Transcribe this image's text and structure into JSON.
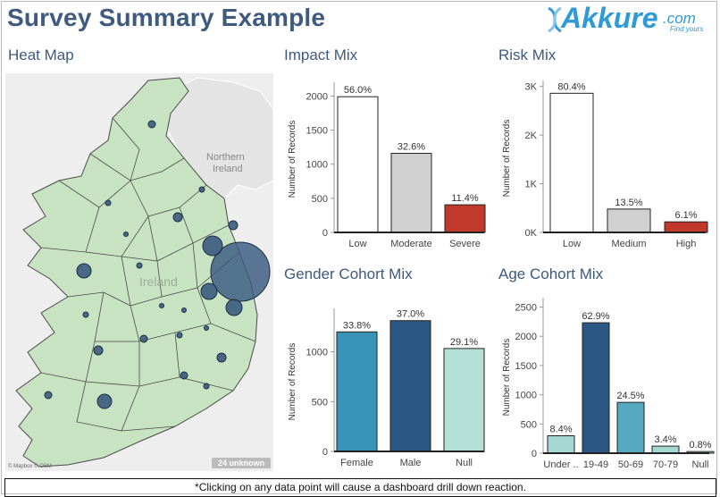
{
  "page": {
    "title": "Survey Summary Example"
  },
  "logo": {
    "main": "Akkure",
    "suffix": ".com",
    "tagline": "Find yours"
  },
  "sections": {
    "heat_map": "Heat Map",
    "impact": "Impact Mix",
    "risk": "Risk Mix",
    "gender": "Gender Cohort Mix",
    "age": "Age Cohort Mix"
  },
  "map": {
    "region_label": "Ireland",
    "northern_label_line1": "Northern",
    "northern_label_line2": "Ireland",
    "unknown_badge": "24 unknown",
    "credit": "© Mapbox © OSM",
    "colors": {
      "land": "#c8e3c2",
      "water": "#eeeeee",
      "ni": "#e4e4e4",
      "marker": "#3b5a80"
    }
  },
  "footer": {
    "note": "*Clicking on any data point will cause a dashboard drill down reaction."
  },
  "chart_data": [
    {
      "id": "impact",
      "type": "bar",
      "categories": [
        "Low",
        "Moderate",
        "Severe"
      ],
      "values": [
        1990,
        1160,
        405
      ],
      "labels": [
        "56.0%",
        "32.6%",
        "11.4%"
      ],
      "colors": [
        "#ffffff",
        "#d0d0d0",
        "#c0392b"
      ],
      "ylabel": "Number of Records",
      "ylim": [
        0,
        2150
      ],
      "ticks": [
        0,
        500,
        1000,
        1500,
        2000
      ],
      "tick_labels": [
        "0",
        "500",
        "1000",
        "1500",
        "2000"
      ]
    },
    {
      "id": "risk",
      "type": "bar",
      "categories": [
        "Low",
        "Medium",
        "High"
      ],
      "values": [
        2860,
        480,
        217
      ],
      "labels": [
        "80.4%",
        "13.5%",
        "6.1%"
      ],
      "colors": [
        "#ffffff",
        "#d0d0d0",
        "#c0392b"
      ],
      "ylabel": "Number of Records",
      "ylim": [
        0,
        3050
      ],
      "ticks": [
        0,
        1000,
        2000,
        3000
      ],
      "tick_labels": [
        "0K",
        "1K",
        "2K",
        "3K"
      ]
    },
    {
      "id": "gender",
      "type": "bar",
      "categories": [
        "Female",
        "Male",
        "Null"
      ],
      "values": [
        1200,
        1313,
        1033
      ],
      "labels": [
        "33.8%",
        "37.0%",
        "29.1%"
      ],
      "colors": [
        "#3a93b8",
        "#2b5784",
        "#b4e0d8"
      ],
      "ylabel": "Number of Records",
      "ylim": [
        0,
        1400
      ],
      "ticks": [
        0,
        500,
        1000
      ],
      "tick_labels": [
        "0",
        "500",
        "1000"
      ]
    },
    {
      "id": "age",
      "type": "bar",
      "categories": [
        "Under ..",
        "19-49",
        "50-69",
        "70-79",
        "Null"
      ],
      "values": [
        298,
        2232,
        870,
        121,
        28
      ],
      "labels": [
        "8.4%",
        "62.9%",
        "24.5%",
        "3.4%",
        "0.8%"
      ],
      "colors": [
        "#a6d8d2",
        "#2b5784",
        "#55a9c0",
        "#a6d8d2",
        "#a6d8d2"
      ],
      "ylabel": "Number of Records",
      "ylim": [
        0,
        2600
      ],
      "ticks": [
        0,
        500,
        1000,
        1500,
        2000,
        2500
      ],
      "tick_labels": [
        "0",
        "500",
        "1000",
        "1500",
        "2000",
        "2500"
      ]
    }
  ]
}
